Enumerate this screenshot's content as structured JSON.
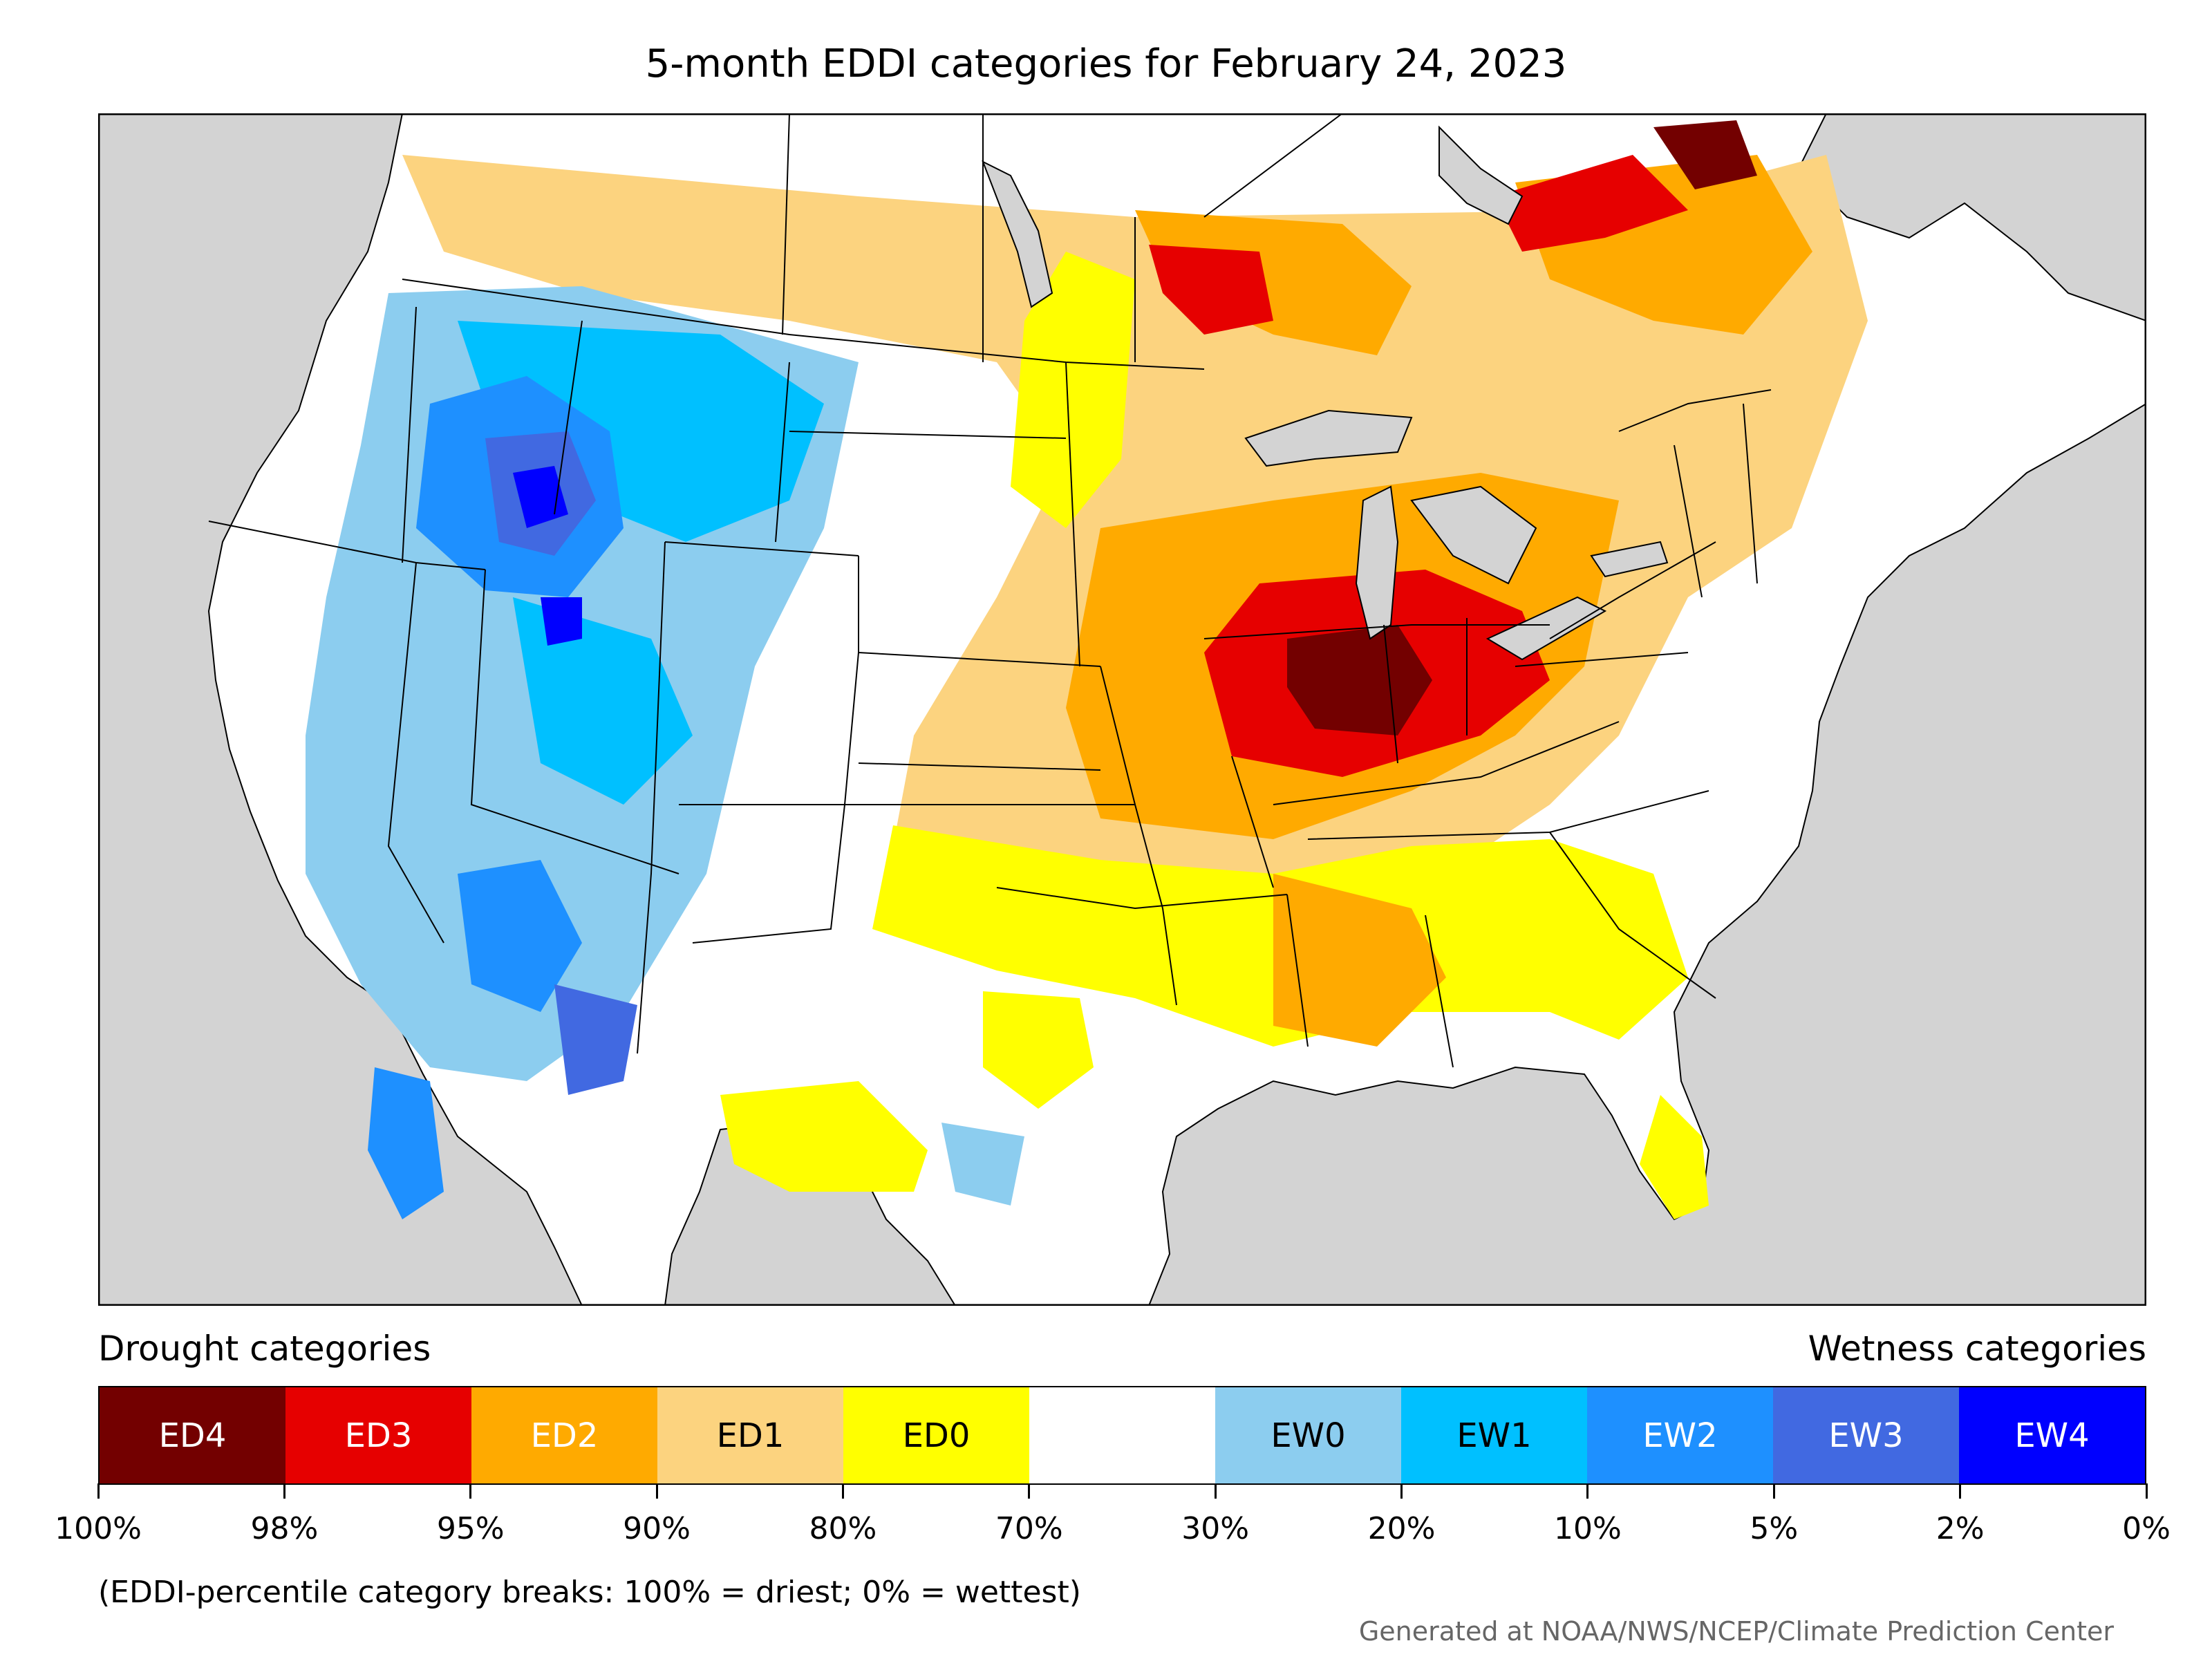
{
  "title": "5-month EDDI categories for February 24, 2023",
  "legend": {
    "left_label": "Drought categories",
    "right_label": "Wetness categories",
    "categories": [
      {
        "label": "ED4",
        "color": "#730000",
        "text_color": "#ffffff"
      },
      {
        "label": "ED3",
        "color": "#e60000",
        "text_color": "#ffffff"
      },
      {
        "label": "ED2",
        "color": "#ffaa00",
        "text_color": "#ffffff"
      },
      {
        "label": "ED1",
        "color": "#fcd37f",
        "text_color": "#000000"
      },
      {
        "label": "ED0",
        "color": "#ffff00",
        "text_color": "#000000"
      },
      {
        "label": "",
        "color": "#ffffff",
        "text_color": "#000000"
      },
      {
        "label": "EW0",
        "color": "#8ccdef",
        "text_color": "#000000"
      },
      {
        "label": "EW1",
        "color": "#00c0ff",
        "text_color": "#000000"
      },
      {
        "label": "EW2",
        "color": "#1e90ff",
        "text_color": "#ffffff"
      },
      {
        "label": "EW3",
        "color": "#4169e1",
        "text_color": "#ffffff"
      },
      {
        "label": "EW4",
        "color": "#0000ff",
        "text_color": "#ffffff"
      }
    ],
    "ticks": [
      "100%",
      "98%",
      "95%",
      "90%",
      "80%",
      "70%",
      "30%",
      "20%",
      "10%",
      "5%",
      "2%",
      "0%"
    ]
  },
  "note": "(EDDI-percentile category breaks: 100% = driest; 0% = wettest)",
  "credit": "Generated at NOAA/NWS/NCEP/Climate Prediction Center",
  "colors": {
    "ocean": "#d3d3d3",
    "land": "#ffffff",
    "lakes": "#d3d3d3"
  }
}
